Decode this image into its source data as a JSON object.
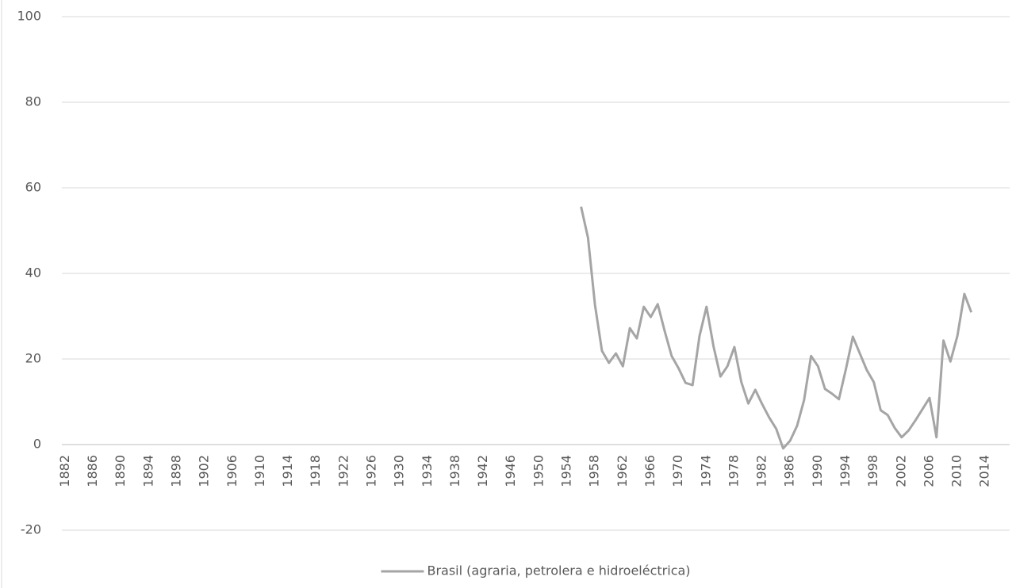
{
  "chart_data": {
    "type": "line",
    "categories": [
      "1882",
      null,
      null,
      null,
      "1886",
      null,
      null,
      null,
      "1890",
      null,
      null,
      null,
      "1894",
      null,
      null,
      null,
      "1898",
      null,
      null,
      null,
      "1902",
      null,
      null,
      null,
      "1906",
      null,
      null,
      null,
      "1910",
      null,
      null,
      null,
      "1914",
      null,
      null,
      null,
      "1918",
      null,
      null,
      null,
      "1922",
      null,
      null,
      null,
      "1926",
      null,
      null,
      null,
      "1930",
      null,
      null,
      null,
      "1934",
      null,
      null,
      null,
      "1938",
      null,
      null,
      null,
      "1942",
      null,
      null,
      null,
      "1946",
      null,
      null,
      null,
      "1950",
      null,
      null,
      null,
      "1954",
      null,
      null,
      null,
      "1958",
      null,
      null,
      null,
      "1962",
      null,
      null,
      null,
      "1966",
      null,
      null,
      null,
      "1970",
      null,
      null,
      null,
      "1974",
      null,
      null,
      null,
      "1978",
      null,
      null,
      null,
      "1982",
      null,
      null,
      null,
      "1986",
      null,
      null,
      null,
      "1990",
      null,
      null,
      null,
      "1994",
      null,
      null,
      null,
      "1998",
      null,
      null,
      null,
      "2002",
      null,
      null,
      null,
      "2006",
      null,
      null,
      null,
      "2010",
      null,
      null,
      null,
      "2014",
      null,
      null,
      null
    ],
    "series": [
      {
        "name": "Brasil (agraria, petrolera e hidroeléctrica)",
        "color": "#a5a5a5",
        "values": [
          null,
          null,
          null,
          null,
          null,
          null,
          null,
          null,
          null,
          null,
          null,
          null,
          null,
          null,
          null,
          null,
          null,
          null,
          null,
          null,
          null,
          null,
          null,
          null,
          null,
          null,
          null,
          null,
          null,
          null,
          null,
          null,
          null,
          null,
          null,
          null,
          null,
          null,
          null,
          null,
          null,
          null,
          null,
          null,
          null,
          null,
          null,
          null,
          null,
          null,
          null,
          null,
          null,
          null,
          null,
          null,
          null,
          null,
          null,
          null,
          null,
          null,
          null,
          null,
          null,
          null,
          null,
          null,
          null,
          null,
          null,
          null,
          null,
          null,
          55.6,
          48.3,
          32.6,
          21.9,
          19.1,
          21.3,
          18.3,
          27.2,
          24.8,
          32.2,
          29.8,
          32.8,
          26.5,
          20.7,
          17.8,
          14.4,
          13.9,
          25.4,
          32.2,
          23.0,
          15.9,
          18.3,
          22.8,
          14.6,
          9.6,
          12.8,
          9.4,
          6.3,
          3.7,
          -0.9,
          0.9,
          4.4,
          10.4,
          20.7,
          18.3,
          13.0,
          11.9,
          10.6,
          17.6,
          25.2,
          21.3,
          17.4,
          14.6,
          8.0,
          6.9,
          3.9,
          1.7,
          3.3,
          5.7,
          8.3,
          10.9,
          1.7,
          24.3,
          19.4,
          25.4,
          35.2,
          30.9,
          null,
          null,
          null,
          null,
          null
        ]
      }
    ],
    "ylim": [
      -20,
      100
    ],
    "yticks": [
      -20,
      0,
      20,
      40,
      60,
      80,
      100
    ],
    "grid": true,
    "legend": "bottom"
  }
}
